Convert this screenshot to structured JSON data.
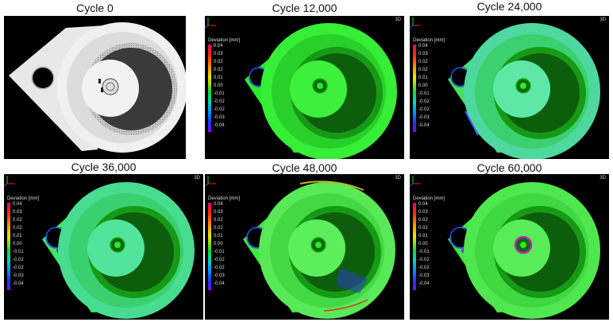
{
  "panels": [
    {
      "caption": "Cycle 0"
    },
    {
      "caption": "Cycle 12,000",
      "badge": "3D"
    },
    {
      "caption": "Cycle 24,000",
      "badge": "3D"
    },
    {
      "caption": "Cycle 36,000",
      "badge": "3D"
    },
    {
      "caption": "Cycle 48,000",
      "badge": "3D"
    },
    {
      "caption": "Cycle 60,000",
      "badge": "3D"
    }
  ],
  "legend": {
    "title": "Deviation [mm]",
    "ticks": [
      "0.04",
      "0.03",
      "0.02",
      "0.02",
      "0.01",
      "0.00",
      "-0.01",
      "-0.02",
      "-0.02",
      "-0.03",
      "-0.04"
    ]
  },
  "colors": {
    "nominal": "#2ee82e",
    "inner_recess": "#0d7a0d",
    "grey_part": "#e6e6e6",
    "background": "#000000"
  }
}
